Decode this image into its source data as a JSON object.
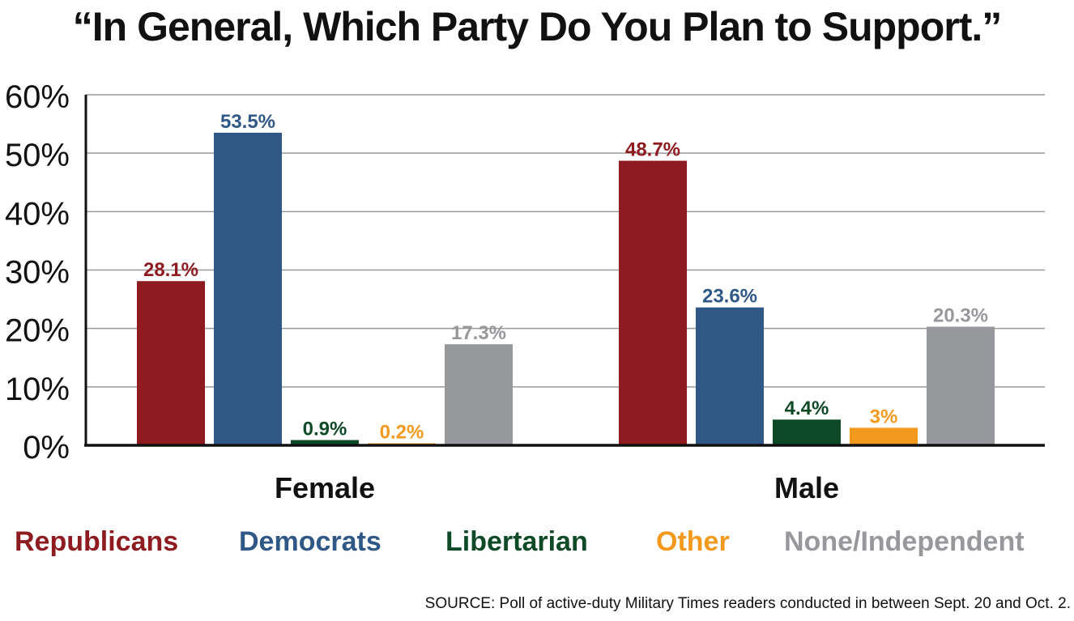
{
  "title": "“In General, Which Party Do You Plan to Support.”",
  "source": "SOURCE: Poll of active-duty Military Times readers conducted in between Sept. 20 and Oct. 2.",
  "colors": {
    "Republicans": "#8e1b1f",
    "Democrats": "#2f5886",
    "Libertarian": "#0f4a28",
    "Other": "#f39a1e",
    "None/Independent": "#96989b"
  },
  "chart_data": {
    "type": "bar",
    "title": "“In General, Which Party Do You Plan to Support.”",
    "xlabel": "",
    "ylabel": "",
    "categories": [
      "Female",
      "Male"
    ],
    "ylim": [
      0,
      60
    ],
    "yticks": [
      "0%",
      "10%",
      "20%",
      "30%",
      "40%",
      "50%",
      "60%"
    ],
    "grid": true,
    "legend_position": "bottom",
    "series": [
      {
        "name": "Republicans",
        "values": [
          28.1,
          48.7
        ],
        "labels": [
          "28.1%",
          "48.7%"
        ]
      },
      {
        "name": "Democrats",
        "values": [
          53.5,
          23.6
        ],
        "labels": [
          "53.5%",
          "23.6%"
        ]
      },
      {
        "name": "Libertarian",
        "values": [
          0.9,
          4.4
        ],
        "labels": [
          "0.9%",
          "4.4%"
        ]
      },
      {
        "name": "Other",
        "values": [
          0.2,
          3
        ],
        "labels": [
          "0.2%",
          "3%"
        ]
      },
      {
        "name": "None/Independent",
        "values": [
          17.3,
          20.3
        ],
        "labels": [
          "17.3%",
          "20.3%"
        ]
      }
    ]
  }
}
